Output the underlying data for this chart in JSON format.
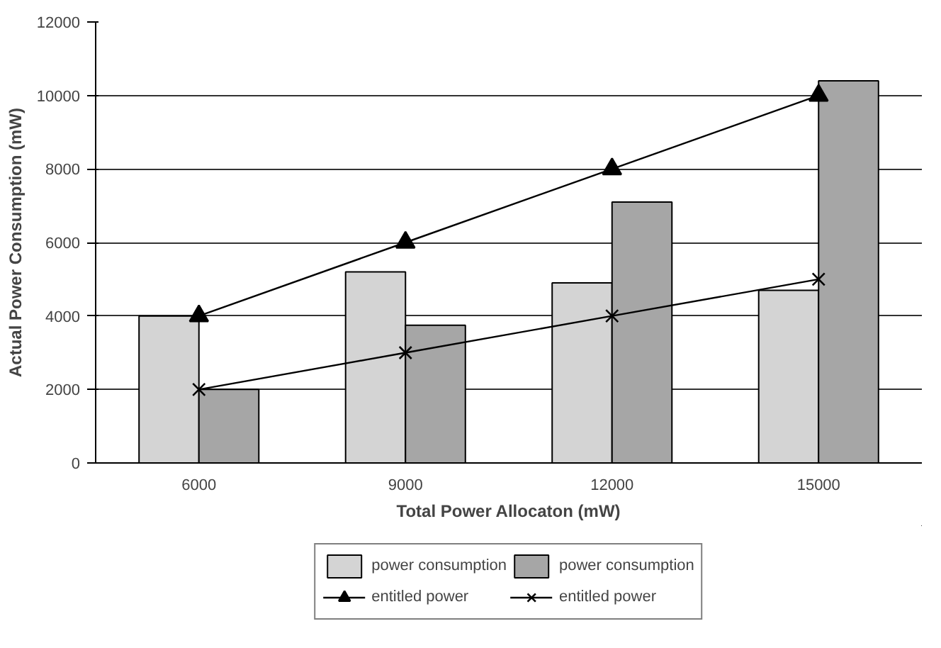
{
  "chart_data": {
    "type": "bar",
    "xlabel": "Total Power Allocaton (mW)",
    "ylabel": "Actual Power Consumption (mW)",
    "categories": [
      "6000",
      "9000",
      "12000",
      "15000"
    ],
    "series": [
      {
        "name": "power consumption",
        "color": "#d4d4d4",
        "values": [
          4000,
          5200,
          4900,
          4700
        ]
      },
      {
        "name": "power consumption",
        "color": "#a6a6a6",
        "values": [
          2000,
          3750,
          7100,
          10400
        ]
      },
      {
        "name": "entitled power",
        "color": "#000000",
        "type": "line",
        "marker": "triangle",
        "values": [
          4000,
          6000,
          8000,
          10000
        ]
      },
      {
        "name": "entitled power",
        "color": "#000000",
        "type": "line",
        "marker": "cross",
        "values": [
          2000,
          3000,
          4000,
          5000
        ]
      }
    ],
    "ylim": [
      0,
      12000
    ],
    "yticks": [
      0,
      2000,
      4000,
      6000,
      8000,
      10000,
      12000
    ],
    "grid": "y",
    "legend": "bottom"
  }
}
